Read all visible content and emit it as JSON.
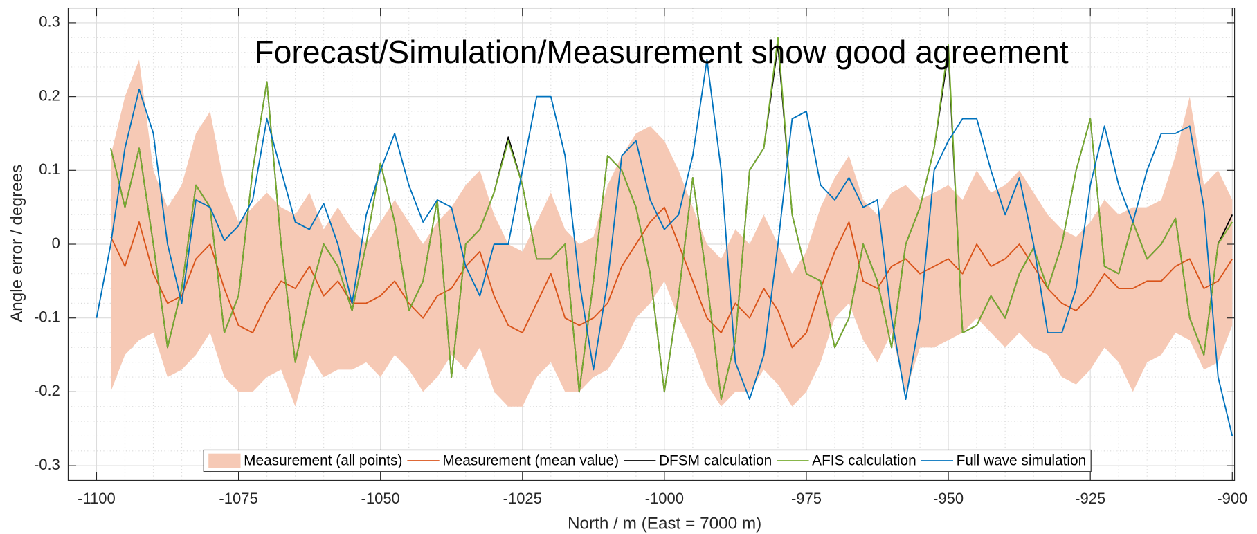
{
  "chart_data": {
    "type": "line",
    "annotation": "Forecast/Simulation/Measurement show good agreement",
    "x_label": "North / m (East = 7000 m)",
    "y_label": "Angle error / degrees",
    "xlim": [
      -1105,
      -899.6
    ],
    "ylim": [
      -0.32,
      0.32
    ],
    "xticks": [
      -1100,
      -1075,
      -1050,
      -1025,
      -1000,
      -975,
      -950,
      -925,
      -900
    ],
    "yticks": [
      -0.3,
      -0.2,
      -0.1,
      0,
      0.1,
      0.2,
      0.3
    ],
    "grid": true,
    "minor_grid": true,
    "legend": "bottom",
    "x": [
      -1100,
      -1097.5,
      -1095,
      -1092.5,
      -1090,
      -1087.5,
      -1085,
      -1082.5,
      -1080,
      -1077.5,
      -1075,
      -1072.5,
      -1070,
      -1067.5,
      -1065,
      -1062.5,
      -1060,
      -1057.5,
      -1055,
      -1052.5,
      -1050,
      -1047.5,
      -1045,
      -1042.5,
      -1040,
      -1037.5,
      -1035,
      -1032.5,
      -1030,
      -1027.5,
      -1025,
      -1022.5,
      -1020,
      -1017.5,
      -1015,
      -1012.5,
      -1010,
      -1007.5,
      -1005,
      -1002.5,
      -1000,
      -997.5,
      -995,
      -992.5,
      -990,
      -987.5,
      -985,
      -982.5,
      -980,
      -977.5,
      -975,
      -972.5,
      -970,
      -967.5,
      -965,
      -962.5,
      -960,
      -957.5,
      -955,
      -952.5,
      -950,
      -947.5,
      -945,
      -942.5,
      -940,
      -937.5,
      -935,
      -932.5,
      -930,
      -927.5,
      -925,
      -922.5,
      -920,
      -917.5,
      -915,
      -912.5,
      -910,
      -907.5,
      -905,
      -902.5,
      -900
    ],
    "series": [
      {
        "name": "Measurement (all points)",
        "type": "band",
        "color": "#f6c9b5",
        "upper": [
          null,
          0.12,
          0.2,
          0.25,
          0.1,
          0.05,
          0.08,
          0.15,
          0.18,
          0.08,
          0.03,
          0.05,
          0.07,
          0.05,
          0.04,
          0.07,
          0.02,
          0.05,
          0.02,
          0.0,
          0.03,
          0.06,
          0.03,
          0.0,
          0.03,
          0.05,
          0.08,
          0.1,
          0.04,
          0.0,
          -0.01,
          0.03,
          0.07,
          0.02,
          0.0,
          0.01,
          0.08,
          0.12,
          0.15,
          0.16,
          0.14,
          0.1,
          0.05,
          0.0,
          -0.02,
          0.02,
          0.0,
          0.04,
          0.0,
          -0.04,
          -0.01,
          0.05,
          0.09,
          0.12,
          0.06,
          0.04,
          0.07,
          0.08,
          0.06,
          0.07,
          0.08,
          0.06,
          0.1,
          0.07,
          0.08,
          0.1,
          0.07,
          0.04,
          0.02,
          0.01,
          0.03,
          0.06,
          0.04,
          0.05,
          0.05,
          0.06,
          0.12,
          0.2,
          0.08,
          0.1,
          0.06
        ],
        "lower": [
          null,
          -0.2,
          -0.15,
          -0.13,
          -0.12,
          -0.18,
          -0.17,
          -0.15,
          -0.12,
          -0.18,
          -0.2,
          -0.2,
          -0.18,
          -0.17,
          -0.22,
          -0.15,
          -0.18,
          -0.17,
          -0.17,
          -0.16,
          -0.18,
          -0.15,
          -0.17,
          -0.2,
          -0.18,
          -0.15,
          -0.17,
          -0.14,
          -0.2,
          -0.22,
          -0.22,
          -0.18,
          -0.16,
          -0.2,
          -0.2,
          -0.18,
          -0.17,
          -0.14,
          -0.1,
          -0.08,
          -0.05,
          -0.1,
          -0.14,
          -0.19,
          -0.22,
          -0.2,
          -0.2,
          -0.17,
          -0.19,
          -0.22,
          -0.2,
          -0.16,
          -0.1,
          -0.08,
          -0.13,
          -0.16,
          -0.12,
          -0.2,
          -0.14,
          -0.14,
          -0.13,
          -0.12,
          -0.1,
          -0.12,
          -0.14,
          -0.12,
          -0.14,
          -0.15,
          -0.18,
          -0.19,
          -0.17,
          -0.14,
          -0.16,
          -0.2,
          -0.16,
          -0.15,
          -0.12,
          -0.13,
          -0.17,
          -0.16,
          -0.11
        ]
      },
      {
        "name": "Measurement (mean value)",
        "color": "#d95319",
        "values": [
          null,
          0.01,
          -0.03,
          0.03,
          -0.04,
          -0.08,
          -0.07,
          -0.02,
          0.0,
          -0.06,
          -0.11,
          -0.12,
          -0.08,
          -0.05,
          -0.06,
          -0.03,
          -0.07,
          -0.05,
          -0.08,
          -0.08,
          -0.07,
          -0.05,
          -0.08,
          -0.1,
          -0.07,
          -0.06,
          -0.03,
          -0.01,
          -0.07,
          -0.11,
          -0.12,
          -0.08,
          -0.04,
          -0.1,
          -0.11,
          -0.1,
          -0.08,
          -0.03,
          0.0,
          0.03,
          0.05,
          0.0,
          -0.05,
          -0.1,
          -0.12,
          -0.08,
          -0.1,
          -0.06,
          -0.09,
          -0.14,
          -0.12,
          -0.06,
          -0.01,
          0.03,
          -0.05,
          -0.06,
          -0.03,
          -0.02,
          -0.04,
          -0.03,
          -0.02,
          -0.04,
          0.0,
          -0.03,
          -0.02,
          0.0,
          -0.03,
          -0.06,
          -0.08,
          -0.09,
          -0.07,
          -0.04,
          -0.06,
          -0.06,
          -0.05,
          -0.05,
          -0.03,
          -0.02,
          -0.06,
          -0.05,
          -0.02
        ]
      },
      {
        "name": "DFSM calculation",
        "color": "#000000",
        "values": [
          null,
          0.13,
          0.05,
          0.13,
          0.0,
          -0.14,
          -0.06,
          0.08,
          0.05,
          -0.12,
          -0.07,
          0.1,
          0.22,
          0.0,
          -0.16,
          -0.07,
          0.0,
          -0.03,
          -0.09,
          0.0,
          0.11,
          0.03,
          -0.09,
          -0.05,
          0.06,
          -0.18,
          0.0,
          0.02,
          0.07,
          0.145,
          0.08,
          -0.02,
          -0.02,
          0.0,
          -0.2,
          -0.05,
          0.12,
          0.1,
          0.05,
          -0.04,
          -0.2,
          -0.07,
          0.09,
          -0.05,
          -0.21,
          -0.13,
          0.1,
          0.13,
          0.27,
          0.04,
          -0.04,
          -0.05,
          -0.14,
          -0.1,
          0.0,
          -0.05,
          -0.14,
          0.0,
          0.05,
          0.13,
          0.26,
          -0.12,
          -0.11,
          -0.07,
          -0.1,
          -0.04,
          -0.005,
          -0.06,
          0.0,
          0.1,
          0.17,
          -0.03,
          -0.04,
          0.03,
          -0.02,
          0.0,
          0.035,
          -0.1,
          -0.15,
          0.0,
          0.04
        ]
      },
      {
        "name": "AFIS calculation",
        "color": "#77ac30",
        "values": [
          null,
          0.13,
          0.05,
          0.13,
          0.0,
          -0.14,
          -0.06,
          0.08,
          0.05,
          -0.12,
          -0.07,
          0.1,
          0.22,
          0.0,
          -0.16,
          -0.07,
          0.0,
          -0.03,
          -0.09,
          0.0,
          0.11,
          0.03,
          -0.09,
          -0.05,
          0.06,
          -0.18,
          0.0,
          0.02,
          0.07,
          0.14,
          0.08,
          -0.02,
          -0.02,
          0.0,
          -0.2,
          -0.05,
          0.12,
          0.1,
          0.05,
          -0.04,
          -0.2,
          -0.07,
          0.09,
          -0.05,
          -0.21,
          -0.13,
          0.1,
          0.13,
          0.28,
          0.04,
          -0.04,
          -0.05,
          -0.14,
          -0.1,
          0.0,
          -0.05,
          -0.14,
          0.0,
          0.05,
          0.13,
          0.27,
          -0.12,
          -0.11,
          -0.07,
          -0.1,
          -0.04,
          -0.005,
          -0.06,
          0.0,
          0.1,
          0.17,
          -0.03,
          -0.04,
          0.03,
          -0.02,
          0.0,
          0.035,
          -0.1,
          -0.15,
          0.0,
          0.03
        ]
      },
      {
        "name": "Full wave simulation",
        "color": "#0072bd",
        "values": [
          -0.1,
          0.0,
          0.13,
          0.21,
          0.15,
          0.0,
          -0.08,
          0.06,
          0.05,
          0.005,
          0.025,
          0.06,
          0.17,
          0.1,
          0.03,
          0.02,
          0.055,
          0.0,
          -0.08,
          0.04,
          0.1,
          0.15,
          0.08,
          0.03,
          0.06,
          0.05,
          -0.03,
          -0.07,
          0.0,
          0.0,
          0.1,
          0.2,
          0.2,
          0.12,
          -0.05,
          -0.17,
          -0.05,
          0.12,
          0.14,
          0.06,
          0.02,
          0.04,
          0.12,
          0.25,
          0.1,
          -0.16,
          -0.21,
          -0.15,
          0.0,
          0.17,
          0.18,
          0.08,
          0.06,
          0.09,
          0.05,
          0.06,
          -0.1,
          -0.21,
          -0.1,
          0.1,
          0.14,
          0.17,
          0.17,
          0.1,
          0.04,
          0.09,
          0.0,
          -0.12,
          -0.12,
          -0.06,
          0.08,
          0.16,
          0.08,
          0.03,
          0.1,
          0.15,
          0.15,
          0.16,
          0.05,
          -0.18,
          -0.26
        ]
      }
    ]
  }
}
